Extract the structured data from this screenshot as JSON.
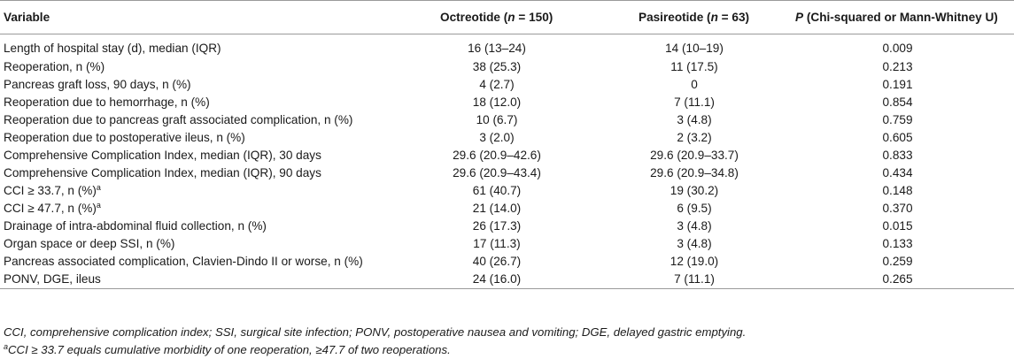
{
  "header": {
    "variable": "Variable",
    "octreotide_prefix": "Octreotide (",
    "octreotide_n": "n",
    "octreotide_suffix": " = 150)",
    "pasireotide_prefix": "Pasireotide (",
    "pasireotide_n": "n",
    "pasireotide_suffix": " = 63)",
    "p_symbol": "P",
    "p_suffix": " (Chi-squared or Mann-Whitney U)"
  },
  "rows": [
    {
      "variable": "Length of hospital stay (d), median (IQR)",
      "sup": "",
      "octreotide": "16 (13–24)",
      "pasireotide": "14 (10–19)",
      "p": "0.009"
    },
    {
      "variable": "Reoperation, n (%)",
      "sup": "",
      "octreotide": "38 (25.3)",
      "pasireotide": "11 (17.5)",
      "p": "0.213"
    },
    {
      "variable": "Pancreas graft loss, 90 days, n (%)",
      "sup": "",
      "octreotide": "4 (2.7)",
      "pasireotide": "0",
      "p": "0.191"
    },
    {
      "variable": "Reoperation due to hemorrhage, n (%)",
      "sup": "",
      "octreotide": "18 (12.0)",
      "pasireotide": "7 (11.1)",
      "p": "0.854"
    },
    {
      "variable": "Reoperation due to pancreas graft associated complication, n (%)",
      "sup": "",
      "octreotide": "10 (6.7)",
      "pasireotide": "3 (4.8)",
      "p": "0.759"
    },
    {
      "variable": "Reoperation due to postoperative ileus, n (%)",
      "sup": "",
      "octreotide": "3 (2.0)",
      "pasireotide": "2 (3.2)",
      "p": "0.605"
    },
    {
      "variable": "Comprehensive Complication Index, median (IQR), 30 days",
      "sup": "",
      "octreotide": "29.6 (20.9–42.6)",
      "pasireotide": "29.6 (20.9–33.7)",
      "p": "0.833"
    },
    {
      "variable": "Comprehensive Complication Index, median (IQR), 90 days",
      "sup": "",
      "octreotide": "29.6 (20.9–43.4)",
      "pasireotide": "29.6 (20.9–34.8)",
      "p": "0.434"
    },
    {
      "variable": "CCI ≥ 33.7, n (%)",
      "sup": "a",
      "octreotide": "61 (40.7)",
      "pasireotide": "19 (30.2)",
      "p": "0.148"
    },
    {
      "variable": "CCI ≥ 47.7, n (%)",
      "sup": "a",
      "octreotide": "21 (14.0)",
      "pasireotide": "6 (9.5)",
      "p": "0.370"
    },
    {
      "variable": "Drainage of intra-abdominal fluid collection, n (%)",
      "sup": "",
      "octreotide": "26 (17.3)",
      "pasireotide": "3 (4.8)",
      "p": "0.015"
    },
    {
      "variable": "Organ space or deep SSI, n (%)",
      "sup": "",
      "octreotide": "17 (11.3)",
      "pasireotide": "3 (4.8)",
      "p": "0.133"
    },
    {
      "variable": "Pancreas associated complication, Clavien-Dindo II or worse, n (%)",
      "sup": "",
      "octreotide": "40 (26.7)",
      "pasireotide": "12 (19.0)",
      "p": "0.259"
    },
    {
      "variable": "PONV, DGE, ileus",
      "sup": "",
      "octreotide": "24 (16.0)",
      "pasireotide": "7 (11.1)",
      "p": "0.265"
    }
  ],
  "footnotes": {
    "abbreviations": "CCI, comprehensive complication index; SSI, surgical site infection; PONV, postoperative nausea and vomiting; DGE, delayed gastric emptying.",
    "a_marker": "a",
    "a_text": "CCI ≥ 33.7 equals cumulative morbidity of one reoperation, ≥47.7 of two reoperations."
  }
}
